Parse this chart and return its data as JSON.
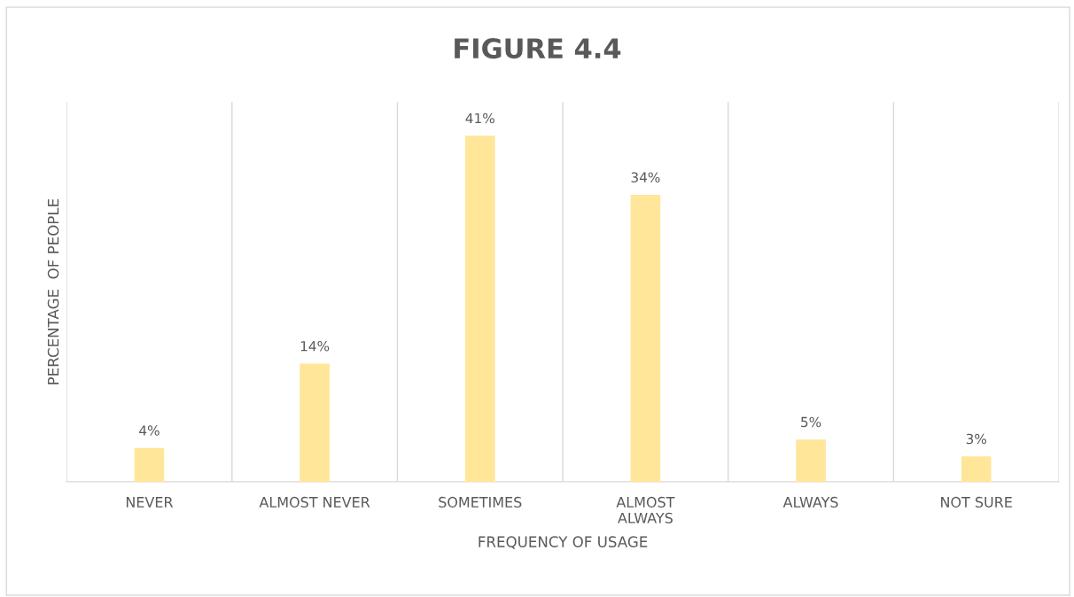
{
  "chart_data": {
    "type": "bar",
    "title": "FIGURE 4.4",
    "xlabel": "FREQUENCY OF USAGE",
    "ylabel": "PERCENTAGE  OF PEOPLE",
    "categories": [
      "NEVER",
      "ALMOST NEVER",
      "SOMETIMES",
      "ALMOST ALWAYS",
      "ALWAYS",
      "NOT SURE"
    ],
    "values": [
      4,
      14,
      41,
      34,
      5,
      3
    ],
    "value_labels": [
      "4%",
      "14%",
      "41%",
      "34%",
      "5%",
      "3%"
    ],
    "color": "#ffe699",
    "ylim": [
      0,
      45
    ],
    "grid": "x",
    "tick_labels": "x"
  }
}
